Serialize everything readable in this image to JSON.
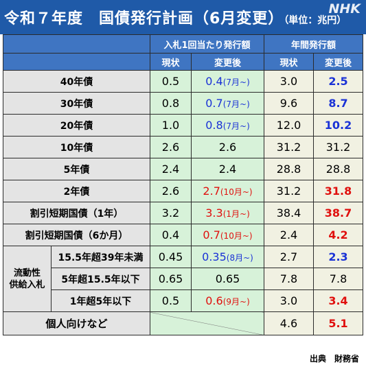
{
  "header": {
    "title": "令和７年度　国債発行計画（6月変更）",
    "unit": "（単位：兆円）",
    "logo": "NHK"
  },
  "columns": {
    "group_auction": "入札1回当たり発行額",
    "group_annual": "年間発行額",
    "current": "現状",
    "changed": "変更後"
  },
  "rows": [
    {
      "label": "40年債",
      "auction_current": "0.5",
      "auction_changed": "0.4",
      "auction_note": "(7月~)",
      "annual_current": "3.0",
      "annual_changed": "2.5"
    },
    {
      "label": "30年債",
      "auction_current": "0.8",
      "auction_changed": "0.7",
      "auction_note": "(7月~)",
      "annual_current": "9.6",
      "annual_changed": "8.7"
    },
    {
      "label": "20年債",
      "auction_current": "1.0",
      "auction_changed": "0.8",
      "auction_note": "(7月~)",
      "annual_current": "12.0",
      "annual_changed": "10.2"
    },
    {
      "label": "10年債",
      "auction_current": "2.6",
      "auction_changed": "2.6",
      "auction_note": "",
      "annual_current": "31.2",
      "annual_changed": "31.2"
    },
    {
      "label": "5年債",
      "auction_current": "2.4",
      "auction_changed": "2.4",
      "auction_note": "",
      "annual_current": "28.8",
      "annual_changed": "28.8"
    },
    {
      "label": "2年債",
      "auction_current": "2.6",
      "auction_changed": "2.7",
      "auction_note": "(10月~)",
      "annual_current": "31.2",
      "annual_changed": "31.8"
    },
    {
      "label": "割引短期国債（1年）",
      "auction_current": "3.2",
      "auction_changed": "3.3",
      "auction_note": "(1月~)",
      "annual_current": "38.4",
      "annual_changed": "38.7"
    },
    {
      "label": "割引短期国債（6か月）",
      "auction_current": "0.4",
      "auction_changed": "0.7",
      "auction_note": "(10月~)",
      "annual_current": "2.4",
      "annual_changed": "4.2"
    }
  ],
  "liquidity": {
    "group_label_1": "流動性",
    "group_label_2": "供給入札",
    "rows": [
      {
        "label": "15.5年超39年未満",
        "auction_current": "0.45",
        "auction_changed": "0.35",
        "auction_note": "(8月~)",
        "annual_current": "2.7",
        "annual_changed": "2.3"
      },
      {
        "label": "5年超15.5年以下",
        "auction_current": "0.65",
        "auction_changed": "0.65",
        "auction_note": "",
        "annual_current": "7.8",
        "annual_changed": "7.8"
      },
      {
        "label": "1年超5年以下",
        "auction_current": "0.5",
        "auction_changed": "0.6",
        "auction_note": "(9月~)",
        "annual_current": "3.0",
        "annual_changed": "3.4"
      }
    ]
  },
  "individual": {
    "label": "個人向けなど",
    "annual_current": "4.6",
    "annual_changed": "5.1"
  },
  "footer": {
    "source": "出典　財務省"
  },
  "colors": {
    "title_bg": "#1f5aa8",
    "header_bg": "#3f75c2",
    "label_bg": "#e4e4e4",
    "auction_bg": "#d7f2d9",
    "annual_bg": "#f1f1e2",
    "increase": "#e0100e",
    "decrease": "#1a32d6"
  }
}
